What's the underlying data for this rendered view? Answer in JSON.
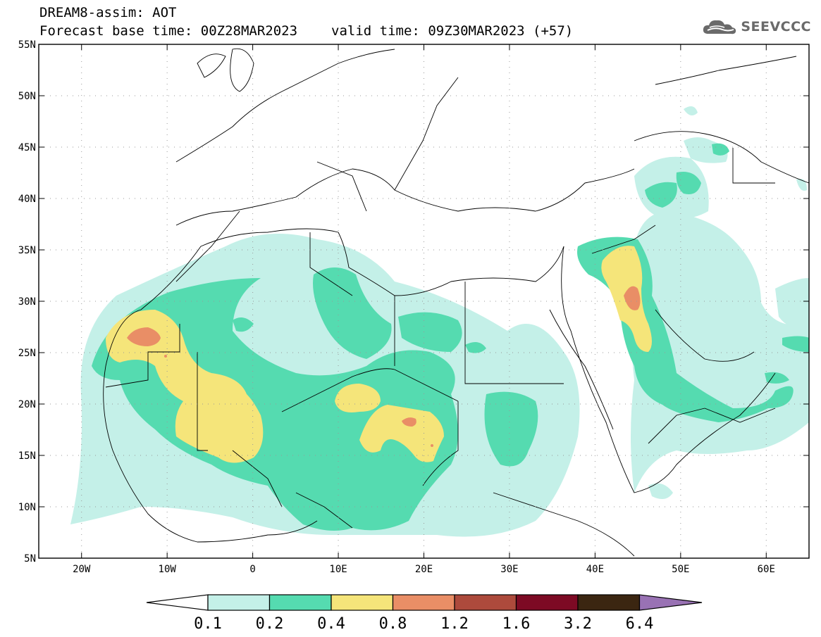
{
  "header": {
    "line1": "DREAM8-assim: AOT",
    "base_time": "Forecast base time: 00Z28MAR2023",
    "valid_time": "valid time: 09Z30MAR2023 (+57)"
  },
  "logo": {
    "text": "SEEVCCC",
    "icon": "cloud-icon"
  },
  "map": {
    "lon_range": [
      -25,
      65
    ],
    "lat_range": [
      5,
      55
    ],
    "lon_ticks": [
      {
        "v": -20,
        "label": "20W"
      },
      {
        "v": -10,
        "label": "10W"
      },
      {
        "v": 0,
        "label": "0"
      },
      {
        "v": 10,
        "label": "10E"
      },
      {
        "v": 20,
        "label": "20E"
      },
      {
        "v": 30,
        "label": "30E"
      },
      {
        "v": 40,
        "label": "40E"
      },
      {
        "v": 50,
        "label": "50E"
      },
      {
        "v": 60,
        "label": "60E"
      }
    ],
    "lat_ticks": [
      {
        "v": 55,
        "label": "55N"
      },
      {
        "v": 50,
        "label": "50N"
      },
      {
        "v": 45,
        "label": "45N"
      },
      {
        "v": 40,
        "label": "40N"
      },
      {
        "v": 35,
        "label": "35N"
      },
      {
        "v": 30,
        "label": "30N"
      },
      {
        "v": 25,
        "label": "25N"
      },
      {
        "v": 20,
        "label": "20N"
      },
      {
        "v": 15,
        "label": "15N"
      },
      {
        "v": 10,
        "label": "10N"
      },
      {
        "v": 5,
        "label": "5N"
      }
    ],
    "grid": "dotted"
  },
  "colorbar": {
    "colors": [
      "#c4f0e8",
      "#55dbb0",
      "#f5e57a",
      "#e98e66",
      "#ad4a3c",
      "#7d0a24",
      "#3b2611"
    ],
    "left_extend_color": "#ffffff",
    "right_extend_color": "#9972b4",
    "labels": [
      "0.1",
      "0.2",
      "0.4",
      "0.8",
      "1.2",
      "1.6",
      "3.2",
      "6.4"
    ]
  }
}
